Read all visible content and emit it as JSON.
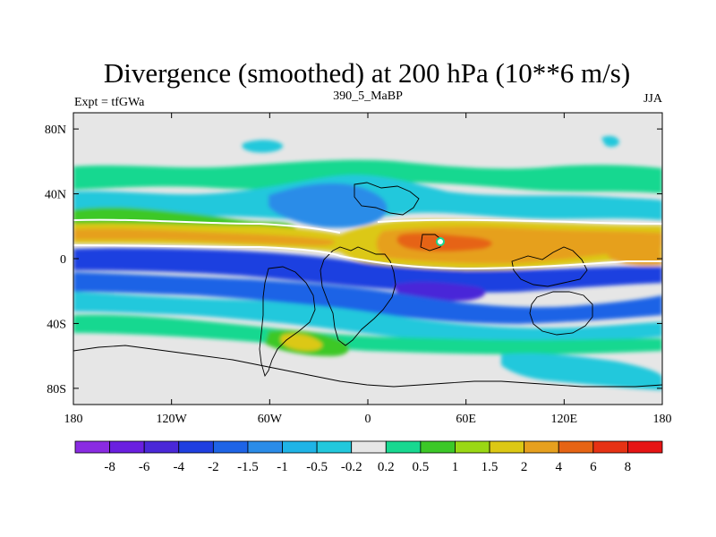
{
  "title": "Divergence (smoothed) at 200 hPa (10**6 m/s)",
  "subtitle_left": "Expt = tfGWa",
  "subtitle_center": "390_5_MaBP",
  "subtitle_right": "JJA",
  "chart_data": {
    "type": "heatmap",
    "projection": "cylindrical equidistant",
    "variable": "Divergence (smoothed) at 200 hPa",
    "units": "10**6 m/s",
    "season": "JJA",
    "x_range": [
      -180,
      180
    ],
    "y_range": [
      -90,
      90
    ],
    "x_ticks": [
      {
        "value": -180,
        "label": "180"
      },
      {
        "value": -120,
        "label": "120W"
      },
      {
        "value": -60,
        "label": "60W"
      },
      {
        "value": 0,
        "label": "0"
      },
      {
        "value": 60,
        "label": "60E"
      },
      {
        "value": 120,
        "label": "120E"
      },
      {
        "value": 180,
        "label": "180"
      }
    ],
    "y_ticks": [
      {
        "value": 80,
        "label": "80N"
      },
      {
        "value": 40,
        "label": "40N"
      },
      {
        "value": 0,
        "label": "0"
      },
      {
        "value": -40,
        "label": "40S"
      },
      {
        "value": -80,
        "label": "80S"
      }
    ],
    "levels": [
      "-8",
      "-6",
      "-4",
      "-2",
      "-1.5",
      "-1",
      "-0.5",
      "-0.2",
      "0.2",
      "0.5",
      "1",
      "1.5",
      "2",
      "4",
      "6",
      "8"
    ],
    "colors": [
      "#8a2be2",
      "#6a1fe0",
      "#4a28d8",
      "#1f3fe0",
      "#1e64e6",
      "#2a8ce8",
      "#1fb4e6",
      "#22c8dc",
      "#e6e6e6",
      "#18d890",
      "#3cc828",
      "#9ad814",
      "#dcc814",
      "#e6a01e",
      "#e66414",
      "#e63214",
      "#e61414"
    ],
    "land_color": "#e6e6e6"
  }
}
